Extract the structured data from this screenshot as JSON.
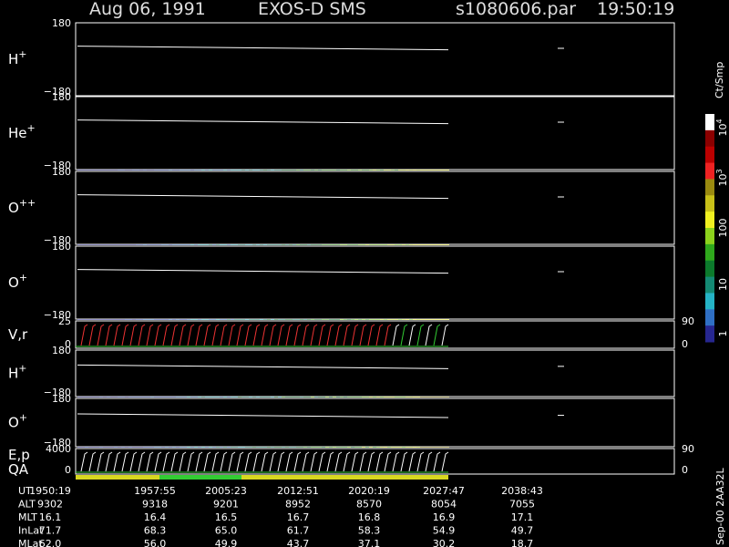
{
  "header": {
    "date": "Aug 06, 1991",
    "instrument": "EXOS-D SMS",
    "file": "s1080606.par",
    "time": "19:50:19"
  },
  "panels": [
    {
      "label": "H",
      "sup": "+",
      "top_tick": "180",
      "bottom_tick": "−180"
    },
    {
      "label": "He",
      "sup": "+",
      "top_tick": "180",
      "bottom_tick": "−180"
    },
    {
      "label": "O",
      "sup": "++",
      "top_tick": "180",
      "bottom_tick": "−180"
    },
    {
      "label": "O",
      "sup": "+",
      "top_tick": "180",
      "bottom_tick": "−180"
    },
    {
      "label": "V,r",
      "top_tick": "25",
      "bottom_tick": "0",
      "right_top_tick": "90",
      "right_bottom_tick": "0"
    },
    {
      "label": "H",
      "sup": "+",
      "top_tick": "180",
      "bottom_tick": "−180"
    },
    {
      "label": "O",
      "sup": "+",
      "top_tick": "180",
      "bottom_tick": "−180"
    },
    {
      "label": "E,p",
      "label2": "QA",
      "top_tick": "4000",
      "bottom_tick": "0",
      "right_top_tick": "90",
      "right_bottom_tick": "0"
    }
  ],
  "colorbar": {
    "unit": "Ct/Smp",
    "ticks": [
      {
        "base": "10",
        "sup": "4"
      },
      {
        "base": "10",
        "sup": "3"
      },
      {
        "base": "100"
      },
      {
        "base": "10"
      },
      {
        "base": "1"
      }
    ]
  },
  "footer": {
    "rows": [
      {
        "label": "UT",
        "values": [
          "1950:19",
          "1957:55",
          "2005:23",
          "2012:51",
          "2020:19",
          "2027:47",
          "2038:43"
        ]
      },
      {
        "label": "ALT",
        "values": [
          "9302",
          "9318",
          "9201",
          "8952",
          "8570",
          "8054",
          "7055"
        ]
      },
      {
        "label": "MLT",
        "values": [
          "16.1",
          "16.4",
          "16.5",
          "16.7",
          "16.8",
          "16.9",
          "17.1"
        ]
      },
      {
        "label": "InLat",
        "values": [
          "71.7",
          "68.3",
          "65.0",
          "61.7",
          "58.3",
          "54.9",
          "49.7"
        ]
      },
      {
        "label": "MLat",
        "values": [
          "62.0",
          "56.0",
          "49.9",
          "43.7",
          "37.1",
          "30.2",
          "18.7"
        ]
      }
    ]
  },
  "stamp": "Sep-00 2AA32L"
}
